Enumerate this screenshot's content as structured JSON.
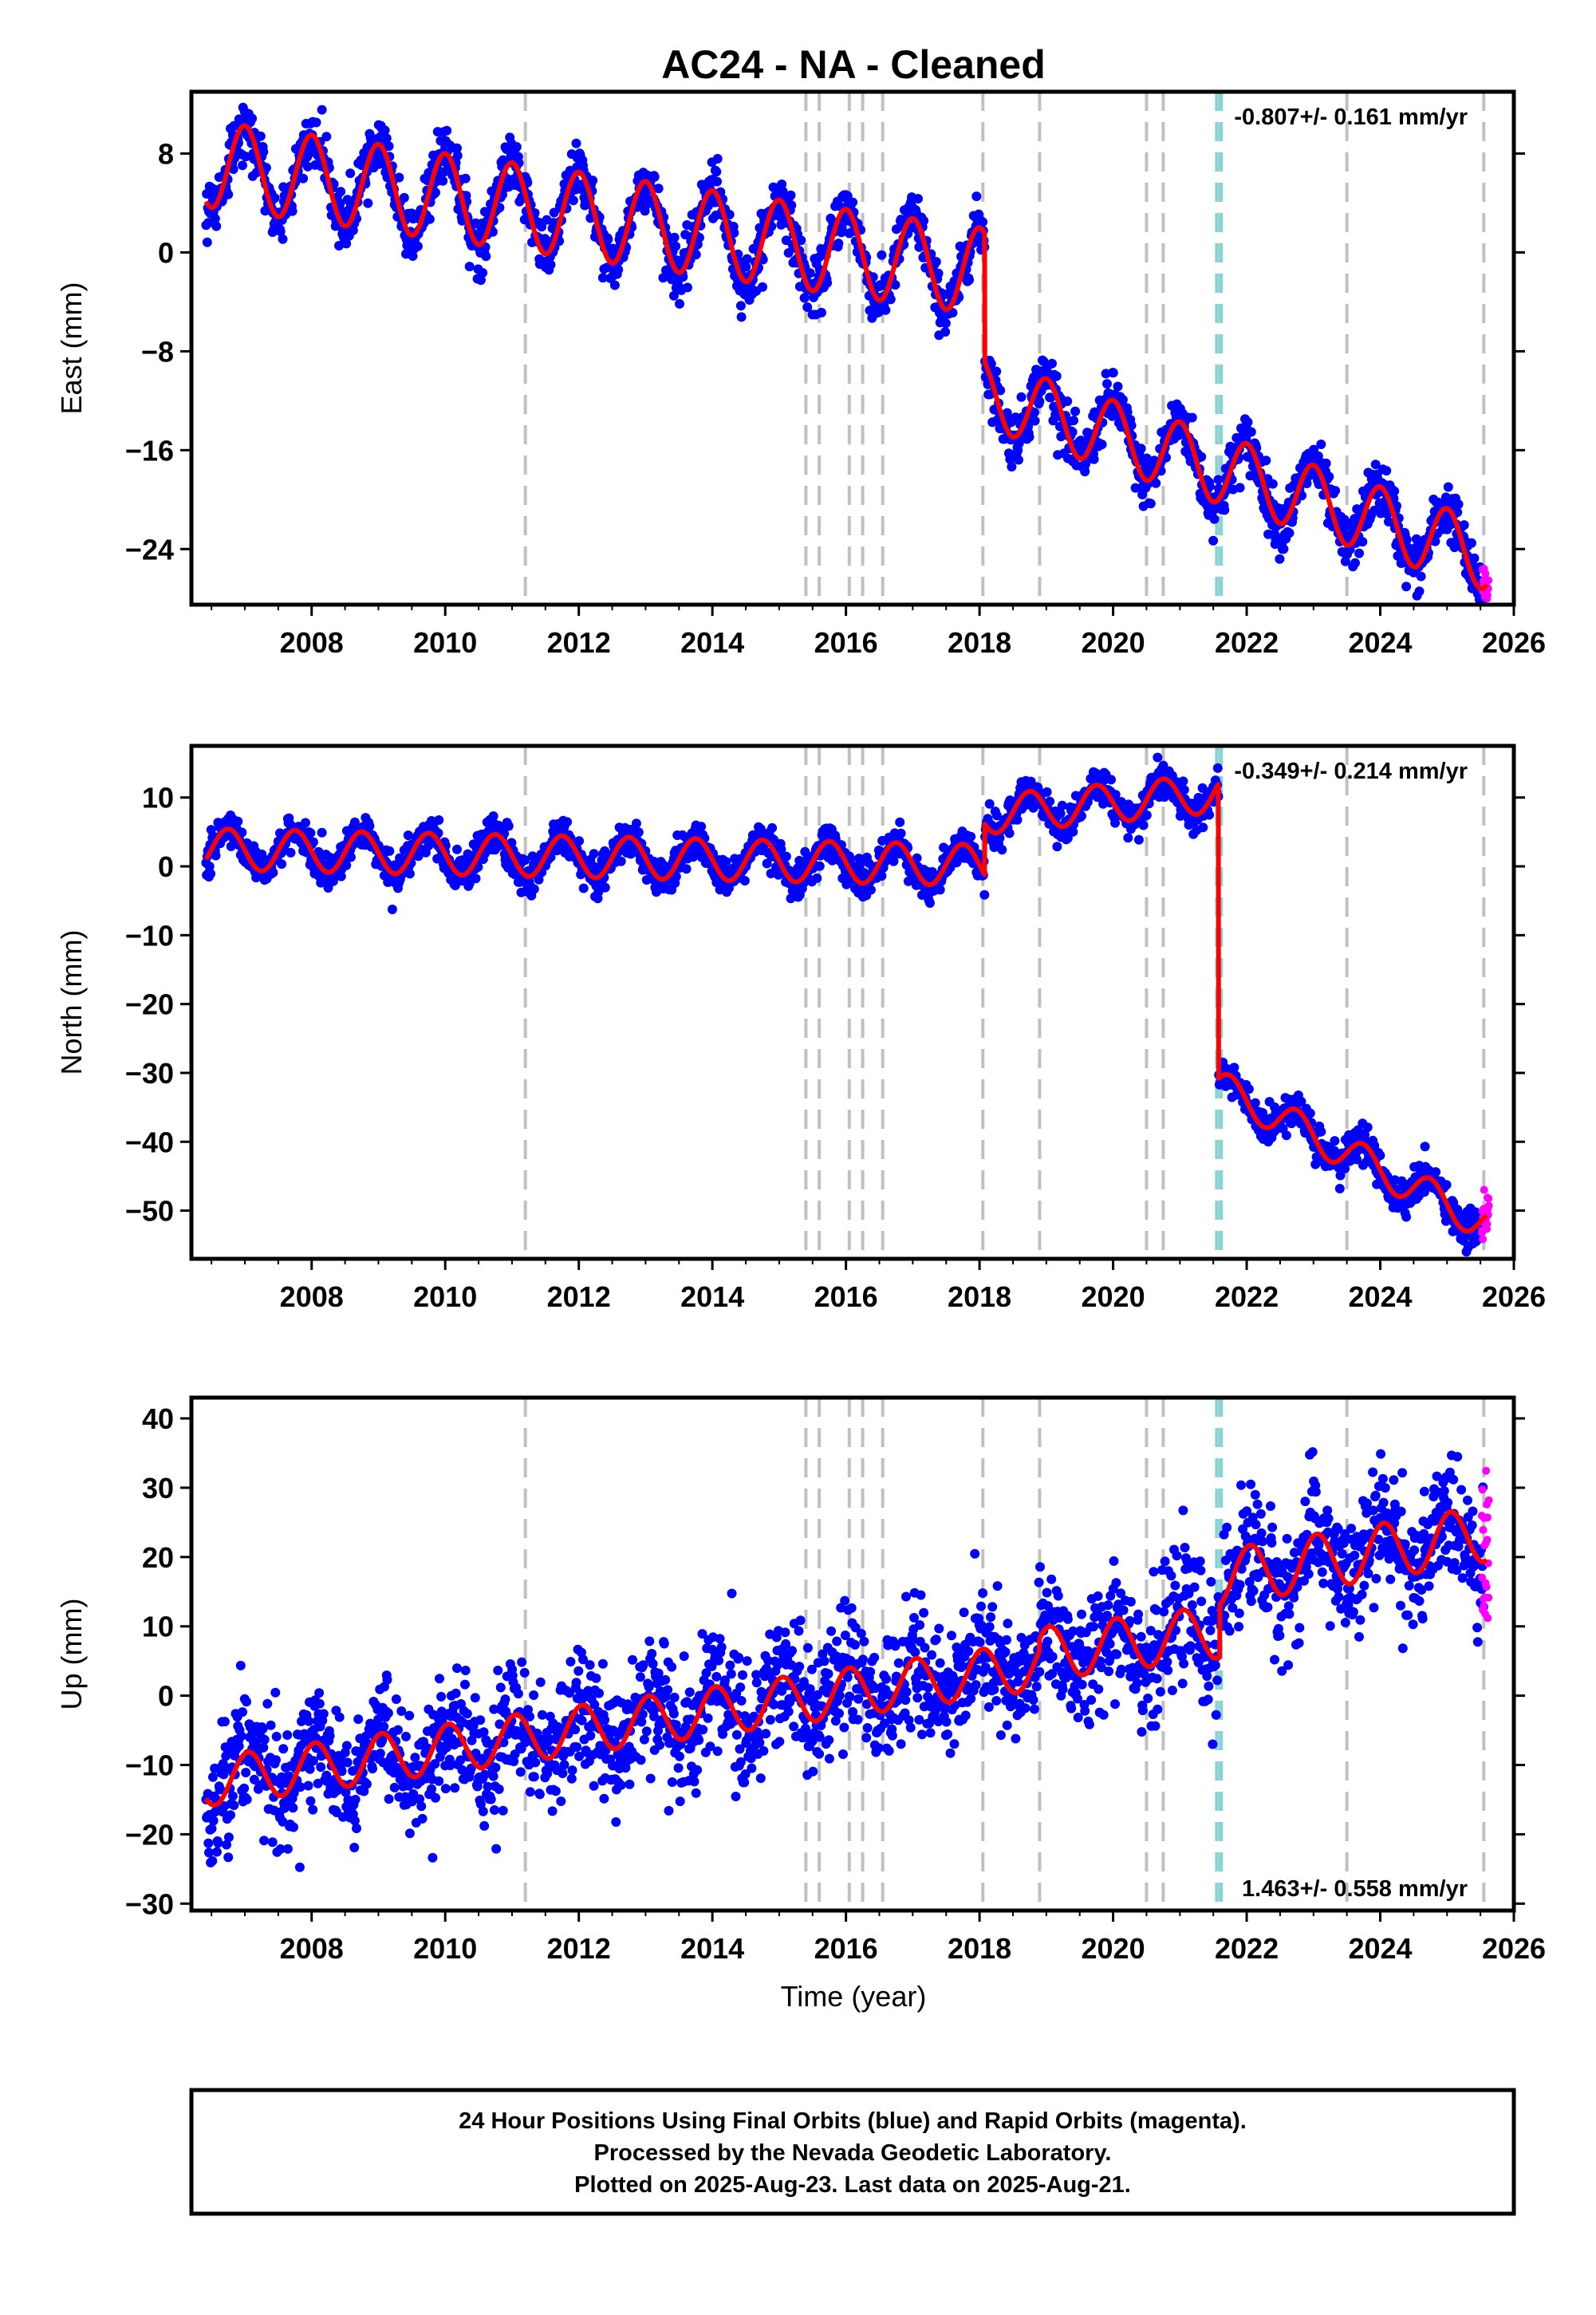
{
  "chart_data": {
    "type": "scatter",
    "title": "AC24  - NA - Cleaned",
    "xlabel": "Time (year)",
    "xlim": [
      2006.2,
      2026.0
    ],
    "x_ticks": [
      2008,
      2010,
      2012,
      2014,
      2016,
      2018,
      2020,
      2022,
      2024,
      2026
    ],
    "colors": {
      "final_orbits": "#0000ff",
      "rapid_orbits": "#ff00ff",
      "model": "#ff0000",
      "event_gray": "#c0c0c0",
      "event_cyan": "#7fd8d8"
    },
    "event_lines_gray": [
      2011.2,
      2015.4,
      2015.6,
      2016.05,
      2016.25,
      2016.55,
      2018.05,
      2018.9,
      2020.5,
      2020.75,
      2021.6,
      2023.5,
      2025.55
    ],
    "event_lines_cyan": [
      2021.55,
      2021.62
    ],
    "panels": [
      {
        "id": "east",
        "ylabel": "East (mm)",
        "ylim": [
          -28.5,
          13
        ],
        "y_ticks": [
          8,
          0,
          -8,
          -16,
          -24
        ],
        "y_tick_labels": [
          "8",
          "0",
          "−8",
          "−16",
          "−24"
        ],
        "rate_text": "-0.807+/- 0.161 mm/yr",
        "rate_position": "top-right",
        "model_segments": [
          {
            "start": 2006.4,
            "end": 2018.08,
            "offset": 7.2,
            "trend": -0.75,
            "amplitude": 3.5,
            "phase_year": 2006.75
          },
          {
            "start": 2018.08,
            "end": 2025.6,
            "offset": -11.4,
            "trend": -1.75,
            "amplitude": 2.8,
            "phase_year": 2006.75
          }
        ],
        "noise_sd": 1.1
      },
      {
        "id": "north",
        "ylabel": "North (mm)",
        "ylim": [
          -57,
          17.5
        ],
        "y_ticks": [
          10,
          0,
          -10,
          -20,
          -30,
          -40,
          -50
        ],
        "y_tick_labels": [
          "10",
          "0",
          "−10",
          "−20",
          "−30",
          "−40",
          "−50"
        ],
        "rate_text": "-0.349+/- 0.214 mm/yr",
        "rate_position": "top-right",
        "model_segments": [
          {
            "start": 2006.4,
            "end": 2018.08,
            "offset": 2.5,
            "trend": -0.2,
            "amplitude": 3.0,
            "phase_year": 2007.5
          },
          {
            "start": 2018.08,
            "end": 2021.58,
            "offset": 7.5,
            "trend": 0.9,
            "amplitude": 2.8,
            "phase_year": 2018.5
          },
          {
            "start": 2021.58,
            "end": 2025.6,
            "offset": -32.0,
            "trend": -5.0,
            "amplitude": 2.5,
            "phase_year": 2022.5
          }
        ],
        "noise_sd": 1.3
      },
      {
        "id": "up",
        "ylabel": "Up (mm)",
        "ylim": [
          -31,
          43
        ],
        "y_ticks": [
          40,
          30,
          20,
          10,
          0,
          -10,
          -20,
          -30
        ],
        "y_tick_labels": [
          "40",
          "30",
          "20",
          "10",
          "0",
          "−10",
          "−20",
          "−30"
        ],
        "rate_text": "1.463+/- 0.558 mm/yr",
        "rate_position": "bottom-right",
        "model_segments": [
          {
            "start": 2006.4,
            "end": 2018.9,
            "offset": -12.5,
            "trend": 1.35,
            "amplitude": 3.5,
            "phase_year": 2006.8
          },
          {
            "start": 2018.9,
            "end": 2021.6,
            "offset": 6.0,
            "trend": 1.2,
            "amplitude": 3.8,
            "phase_year": 2018.8
          },
          {
            "start": 2021.6,
            "end": 2025.6,
            "offset": 17.0,
            "trend": 1.6,
            "amplitude": 4.0,
            "phase_year": 2021.8
          }
        ],
        "noise_sd": 4.5
      }
    ]
  },
  "footer": {
    "line1": "24 Hour Positions Using Final Orbits (blue) and Rapid Orbits (magenta).",
    "line2": "Processed by the Nevada Geodetic Laboratory.",
    "line3": "Plotted on 2025-Aug-23. Last data on 2025-Aug-21."
  }
}
